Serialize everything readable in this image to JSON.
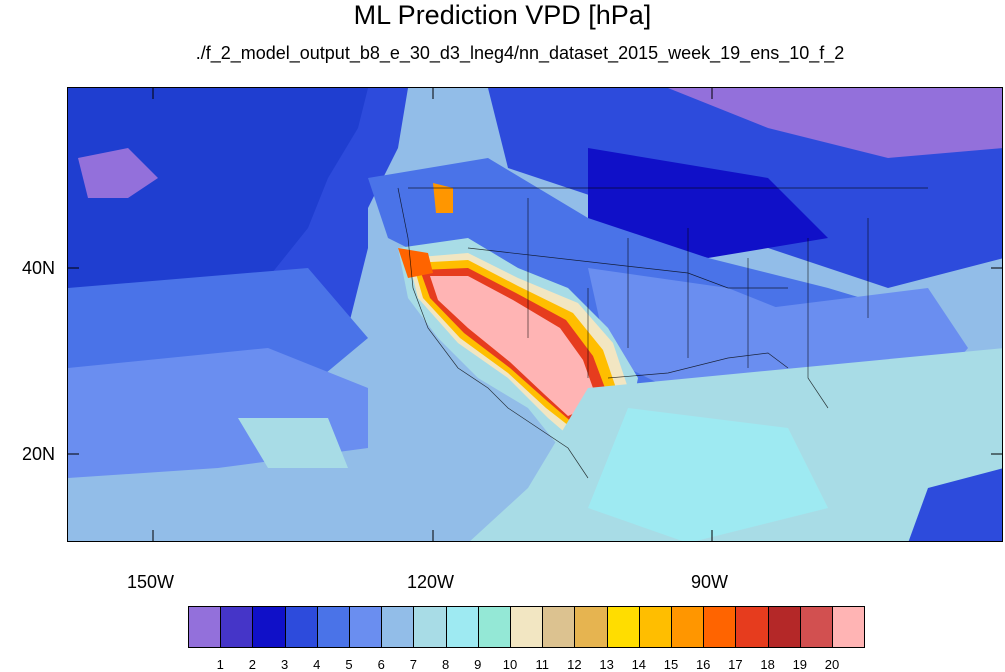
{
  "title": "ML Prediction VPD [hPa]",
  "subtitle": "./f_2_model_output_b8_e_30_d3_lneg4/nn_dataset_2015_week_19_ens_10_f_2",
  "axes": {
    "lat_labels": [
      "40N",
      "20N"
    ],
    "lon_labels": [
      "150W",
      "120W",
      "90W"
    ]
  },
  "colorbar": {
    "labels": [
      "1",
      "2",
      "3",
      "4",
      "5",
      "6",
      "7",
      "8",
      "9",
      "10",
      "11",
      "12",
      "13",
      "14",
      "15",
      "16",
      "17",
      "18",
      "19",
      "20"
    ],
    "colors": [
      "#9370db",
      "#4535c8",
      "#1010c8",
      "#2d4bdc",
      "#4a73e8",
      "#6a8ef0",
      "#92bde8",
      "#a8dce6",
      "#9eeaf2",
      "#94e8d6",
      "#f2e6c2",
      "#dcc290",
      "#e6b450",
      "#ffdd00",
      "#ffbe00",
      "#ff9600",
      "#ff6400",
      "#e63c1e",
      "#b42828",
      "#d25050",
      "#ffb4b4"
    ]
  }
}
